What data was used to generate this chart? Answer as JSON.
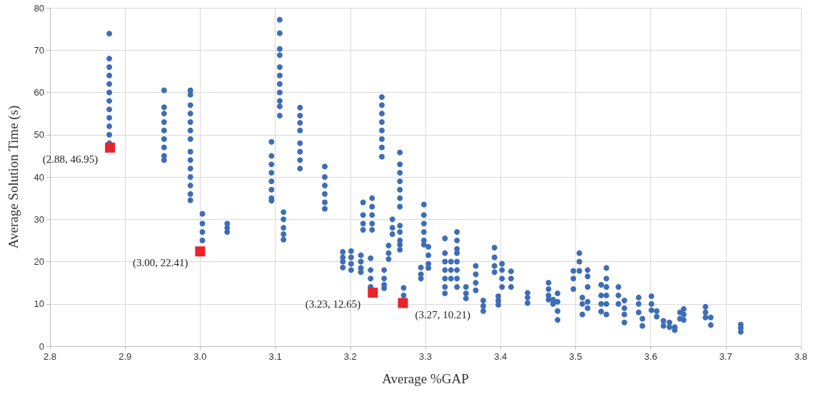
{
  "chart_data": {
    "type": "scatter",
    "xlabel": "Average %GAP",
    "ylabel": "Average Solution Time (s)",
    "xlim": [
      2.8,
      3.8
    ],
    "ylim": [
      0,
      80
    ],
    "xticks": [
      2.8,
      2.9,
      {
        "value": 3,
        "label": "3.0"
      },
      3.1,
      3.2,
      3.3,
      3.4,
      3.5,
      3.6,
      3.7,
      3.8
    ],
    "yticks": [
      0,
      10,
      20,
      30,
      40,
      50,
      60,
      70,
      80
    ],
    "grid": true,
    "marker": "circle",
    "series": [
      {
        "color": "#3e6db7",
        "x": [
          2.879,
          2.879,
          2.879,
          2.879,
          2.879,
          2.879,
          2.879,
          2.879,
          2.879,
          2.879,
          2.879,
          2.879,
          2.952,
          2.952,
          2.952,
          2.952,
          2.952,
          2.952,
          2.952,
          2.952,
          2.952,
          2.987,
          2.987,
          2.987,
          2.987,
          2.987,
          2.987,
          2.987,
          2.987,
          2.987,
          2.987,
          2.987,
          2.987,
          2.987,
          2.987,
          3.003,
          3.003,
          3.003,
          3.003,
          3.036,
          3.036,
          3.036,
          3.095,
          3.095,
          3.095,
          3.095,
          3.095,
          3.095,
          3.095,
          3.095,
          3.106,
          3.106,
          3.106,
          3.106,
          3.106,
          3.106,
          3.106,
          3.106,
          3.106,
          3.106,
          3.106,
          3.111,
          3.111,
          3.111,
          3.111,
          3.111,
          3.133,
          3.133,
          3.133,
          3.133,
          3.133,
          3.133,
          3.133,
          3.133,
          3.166,
          3.166,
          3.166,
          3.166,
          3.166,
          3.166,
          3.19,
          3.19,
          3.19,
          3.19,
          3.201,
          3.201,
          3.201,
          3.201,
          3.214,
          3.214,
          3.214,
          3.214,
          3.217,
          3.217,
          3.217,
          3.217,
          3.227,
          3.227,
          3.227,
          3.227,
          3.229,
          3.229,
          3.229,
          3.229,
          3.229,
          3.245,
          3.245,
          3.245,
          3.245,
          3.251,
          3.251,
          3.251,
          3.242,
          3.242,
          3.242,
          3.242,
          3.242,
          3.242,
          3.242,
          3.242,
          3.256,
          3.256,
          3.256,
          3.266,
          3.266,
          3.266,
          3.266,
          3.266,
          3.266,
          3.266,
          3.266,
          3.266,
          3.266,
          3.266,
          3.266,
          3.271,
          3.271,
          3.294,
          3.294,
          3.294,
          3.298,
          3.298,
          3.298,
          3.298,
          3.298,
          3.298,
          3.304,
          3.304,
          3.304,
          3.304,
          3.326,
          3.326,
          3.326,
          3.326,
          3.326,
          3.326,
          3.326,
          3.334,
          3.334,
          3.334,
          3.342,
          3.342,
          3.342,
          3.342,
          3.342,
          3.342,
          3.342,
          3.342,
          3.354,
          3.354,
          3.354,
          3.367,
          3.367,
          3.367,
          3.367,
          3.377,
          3.377,
          3.377,
          3.392,
          3.392,
          3.392,
          3.392,
          3.397,
          3.397,
          3.397,
          3.402,
          3.402,
          3.402,
          3.402,
          3.414,
          3.414,
          3.414,
          3.436,
          3.436,
          3.436,
          3.464,
          3.464,
          3.464,
          3.464,
          3.47,
          3.47,
          3.476,
          3.476,
          3.476,
          3.476,
          3.497,
          3.497,
          3.497,
          3.505,
          3.505,
          3.505,
          3.509,
          3.509,
          3.509,
          3.516,
          3.516,
          3.516,
          3.516,
          3.516,
          3.534,
          3.534,
          3.534,
          3.534,
          3.541,
          3.541,
          3.541,
          3.541,
          3.541,
          3.541,
          3.557,
          3.557,
          3.557,
          3.565,
          3.565,
          3.565,
          3.565,
          3.584,
          3.584,
          3.584,
          3.589,
          3.589,
          3.601,
          3.601,
          3.601,
          3.608,
          3.608,
          3.617,
          3.617,
          3.625,
          3.625,
          3.632,
          3.632,
          3.639,
          3.639,
          3.644,
          3.644,
          3.644,
          3.673,
          3.673,
          3.673,
          3.68,
          3.68,
          3.72,
          3.72,
          3.72
        ],
        "values": [
          73.9,
          68,
          66,
          64,
          62,
          60,
          58,
          56,
          54,
          52,
          50,
          48,
          60.5,
          56.5,
          55,
          53,
          51,
          49,
          47,
          45,
          44,
          60.5,
          59.5,
          57,
          55,
          53,
          51,
          49,
          46,
          44,
          42,
          40,
          38,
          36,
          34.5,
          31.3,
          29,
          27,
          25,
          29,
          28,
          27,
          48.3,
          45,
          43,
          41,
          39,
          37,
          35,
          34.4,
          77.2,
          74,
          70.3,
          68.8,
          66,
          64,
          62,
          60,
          58,
          56.7,
          54.5,
          31.7,
          30,
          28,
          26.5,
          25.2,
          56.4,
          54.5,
          52.8,
          51,
          48,
          46,
          44,
          42,
          42.5,
          40,
          38,
          36,
          34,
          32.5,
          22.3,
          21,
          20,
          18.6,
          22.5,
          21,
          19.5,
          18,
          21.5,
          20,
          18.5,
          17.5,
          34,
          31,
          29,
          27.5,
          20.8,
          18,
          16,
          14,
          35,
          33,
          31,
          29,
          27.5,
          18,
          16,
          14.5,
          13.7,
          23.8,
          22,
          20.6,
          58.9,
          57,
          55,
          53,
          51,
          49,
          47,
          44.8,
          30,
          28,
          26.5,
          45.8,
          43,
          41,
          39,
          37,
          35,
          33,
          28.5,
          27,
          25,
          24,
          22.8,
          13.8,
          12,
          18.6,
          17,
          16,
          33.5,
          31,
          29,
          27,
          25,
          24,
          23.5,
          21.5,
          19.5,
          18.5,
          25.5,
          22,
          20,
          18,
          16,
          14,
          12.5,
          20,
          18,
          16,
          27,
          25,
          23,
          22,
          20,
          18,
          16,
          14,
          14,
          12.5,
          11.3,
          19,
          17,
          15,
          13.2,
          10.8,
          9.5,
          8.3,
          23.3,
          21,
          19,
          17.5,
          11.8,
          10.8,
          9.8,
          19.5,
          18,
          16,
          14,
          17.7,
          16,
          14,
          12.6,
          11.5,
          10.2,
          15,
          13.5,
          12,
          11,
          11,
          10,
          12.5,
          10.5,
          8.3,
          6.2,
          17.8,
          16,
          13.5,
          22,
          20,
          17.8,
          11.5,
          10,
          7.5,
          18,
          16.5,
          14,
          10.5,
          9,
          14.5,
          12,
          10,
          8.2,
          18.5,
          16,
          14,
          12,
          10,
          7.5,
          14,
          12,
          10,
          10.8,
          9,
          7.5,
          5.6,
          11.5,
          10,
          8,
          6.5,
          4.8,
          11.8,
          10,
          8.5,
          8.3,
          7,
          6,
          4.8,
          5.6,
          4.5,
          4.5,
          3.8,
          8,
          6.5,
          8.8,
          7.5,
          6.2,
          9.3,
          8,
          6.8,
          6.8,
          5,
          5.1,
          4.3,
          3.4
        ]
      },
      {
        "color": "#e8232b",
        "marker": "square",
        "x": [
          2.88,
          3.0,
          3.23,
          3.27
        ],
        "values": [
          46.95,
          22.41,
          12.65,
          10.21
        ],
        "value_labels": [
          "(2.88, 46.95)",
          "(3.00, 22.41)",
          "(3.23, 12.65)",
          "(3.27, 10.21)"
        ]
      }
    ]
  }
}
